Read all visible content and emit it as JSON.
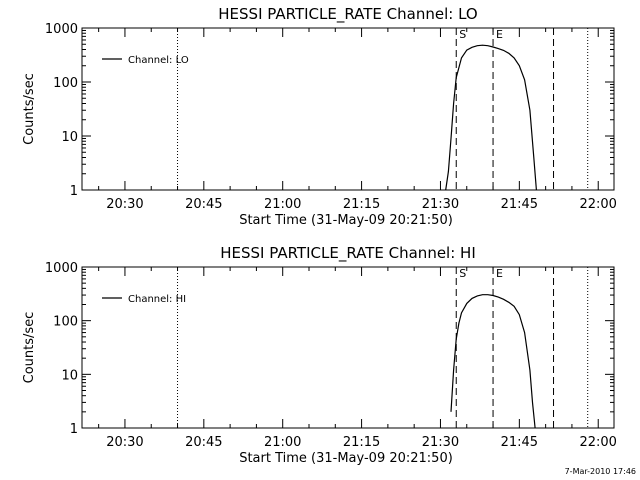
{
  "chart_data": [
    {
      "type": "line",
      "title": "HESSI PARTICLE_RATE Channel: LO",
      "xlabel": "Start Time (31-May-09 20:21:50)",
      "ylabel": "Counts/sec",
      "yscale": "log",
      "xlim": [
        "20:21:50",
        "22:03:00"
      ],
      "ylim": [
        1,
        1000
      ],
      "x_ticks": [
        "20:30",
        "20:45",
        "21:00",
        "21:15",
        "21:30",
        "21:45",
        "22:00"
      ],
      "y_ticks": [
        "1",
        "10",
        "100",
        "1000"
      ],
      "grid": false,
      "legend": "top-left",
      "series": [
        {
          "name": "Channel: LO",
          "x": [
            "21:31:00",
            "21:31:30",
            "21:32:00",
            "21:32:30",
            "21:33:00",
            "21:34:00",
            "21:35:00",
            "21:36:00",
            "21:37:00",
            "21:38:00",
            "21:39:00",
            "21:40:00",
            "21:41:00",
            "21:42:00",
            "21:43:00",
            "21:44:00",
            "21:45:00",
            "21:46:00",
            "21:47:00",
            "21:47:45",
            "21:48:15"
          ],
          "values": [
            1,
            2.2,
            9,
            40,
            120,
            280,
            390,
            440,
            470,
            480,
            470,
            445,
            415,
            385,
            340,
            280,
            200,
            110,
            30,
            4,
            1
          ]
        }
      ],
      "markers": [
        {
          "label": "S",
          "x": "21:33:00",
          "style": "dashed"
        },
        {
          "label": "E",
          "x": "21:40:00",
          "style": "dashed"
        },
        {
          "label": "",
          "x": "21:51:30",
          "style": "dashed"
        },
        {
          "label": "",
          "x": "20:40:00",
          "style": "dotted"
        },
        {
          "label": "",
          "x": "21:58:00",
          "style": "dotted"
        }
      ]
    },
    {
      "type": "line",
      "title": "HESSI PARTICLE_RATE Channel: HI",
      "xlabel": "Start Time (31-May-09 20:21:50)",
      "ylabel": "Counts/sec",
      "yscale": "log",
      "xlim": [
        "20:21:50",
        "22:03:00"
      ],
      "ylim": [
        1,
        1000
      ],
      "x_ticks": [
        "20:30",
        "20:45",
        "21:00",
        "21:15",
        "21:30",
        "21:45",
        "22:00"
      ],
      "y_ticks": [
        "1",
        "10",
        "100",
        "1000"
      ],
      "grid": false,
      "legend": "top-left",
      "series": [
        {
          "name": "Channel: HI",
          "x": [
            "21:32:00",
            "21:32:30",
            "21:33:00",
            "21:33:30",
            "21:34:00",
            "21:35:00",
            "21:36:00",
            "21:37:00",
            "21:38:00",
            "21:39:00",
            "21:40:00",
            "21:41:00",
            "21:42:00",
            "21:43:00",
            "21:44:00",
            "21:45:00",
            "21:46:00",
            "21:47:00",
            "21:47:30",
            "21:48:00"
          ],
          "values": [
            2,
            12,
            45,
            90,
            140,
            210,
            260,
            290,
            305,
            305,
            295,
            275,
            250,
            220,
            185,
            130,
            60,
            12,
            3,
            1
          ]
        }
      ],
      "markers": [
        {
          "label": "S",
          "x": "21:33:00",
          "style": "dashed"
        },
        {
          "label": "E",
          "x": "21:40:00",
          "style": "dashed"
        },
        {
          "label": "",
          "x": "21:51:30",
          "style": "dashed"
        },
        {
          "label": "",
          "x": "20:40:00",
          "style": "dotted"
        },
        {
          "label": "",
          "x": "21:58:00",
          "style": "dotted"
        }
      ]
    }
  ],
  "footer": "7-Mar-2010 17:46"
}
